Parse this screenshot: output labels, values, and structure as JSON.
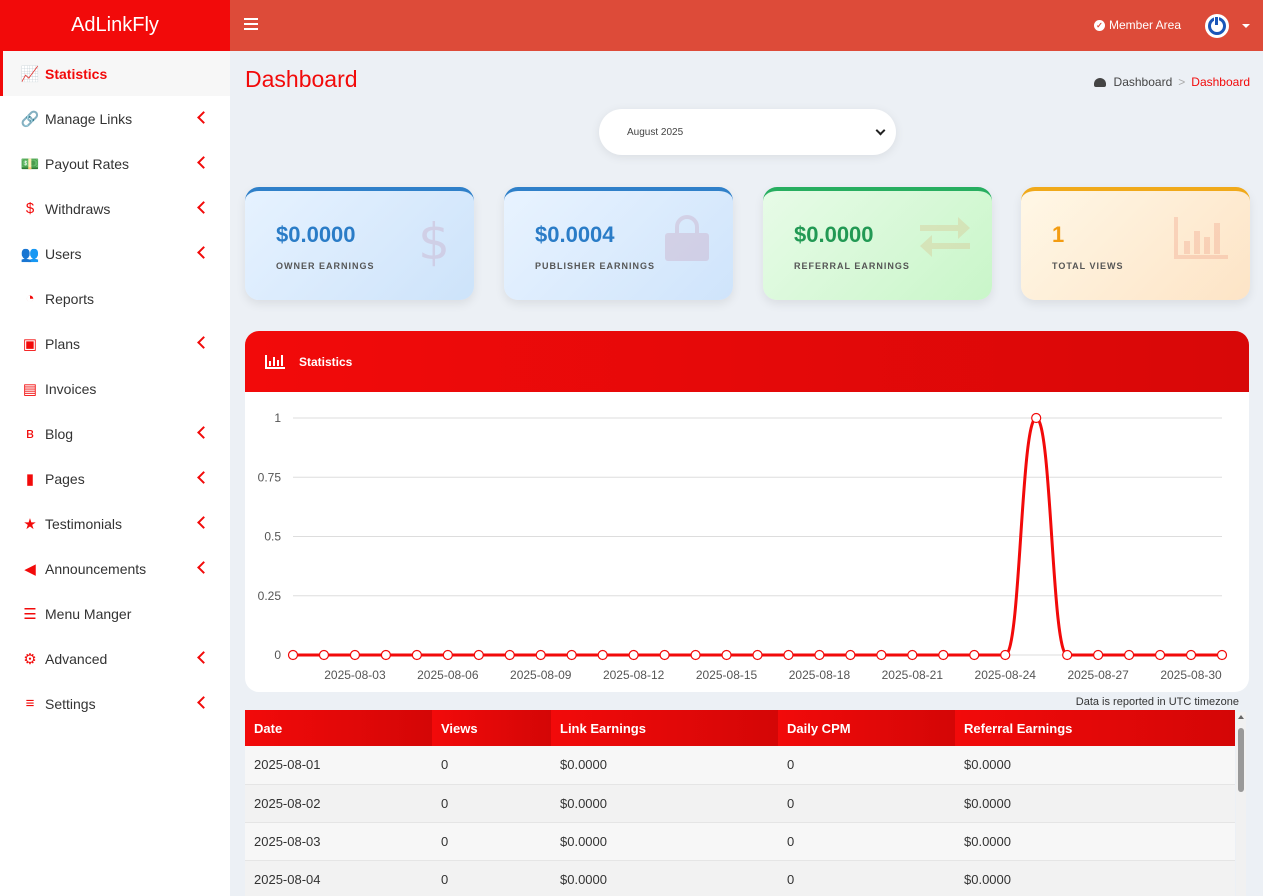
{
  "app": {
    "logo": "AdLinkFly"
  },
  "header": {
    "member_area": "Member Area"
  },
  "sidebar": {
    "items": [
      {
        "label": "Statistics",
        "icon": "line-chart-icon",
        "active": true,
        "expandable": false
      },
      {
        "label": "Manage Links",
        "icon": "link-icon",
        "active": false,
        "expandable": true
      },
      {
        "label": "Payout Rates",
        "icon": "money-icon",
        "active": false,
        "expandable": true
      },
      {
        "label": "Withdraws",
        "icon": "dollar-icon",
        "active": false,
        "expandable": true
      },
      {
        "label": "Users",
        "icon": "users-icon",
        "active": false,
        "expandable": true
      },
      {
        "label": "Reports",
        "icon": "pie-chart-icon",
        "active": false,
        "expandable": false
      },
      {
        "label": "Plans",
        "icon": "cubes-icon",
        "active": false,
        "expandable": true
      },
      {
        "label": "Invoices",
        "icon": "invoice-icon",
        "active": false,
        "expandable": false
      },
      {
        "label": "Blog",
        "icon": "blog-icon",
        "active": false,
        "expandable": true
      },
      {
        "label": "Pages",
        "icon": "file-icon",
        "active": false,
        "expandable": true
      },
      {
        "label": "Testimonials",
        "icon": "star-icon",
        "active": false,
        "expandable": true
      },
      {
        "label": "Announcements",
        "icon": "megaphone-icon",
        "active": false,
        "expandable": true
      },
      {
        "label": "Menu Manger",
        "icon": "bars-icon",
        "active": false,
        "expandable": false
      },
      {
        "label": "Advanced",
        "icon": "gears-icon",
        "active": false,
        "expandable": true
      },
      {
        "label": "Settings",
        "icon": "sliders-icon",
        "active": false,
        "expandable": true
      }
    ]
  },
  "page": {
    "title": "Dashboard",
    "breadcrumb": {
      "home": "Dashboard",
      "current": "Dashboard"
    },
    "month_select": "August 2025"
  },
  "cards": [
    {
      "value": "$0.0000",
      "label": "OWNER EARNINGS",
      "icon": "dollar-icon"
    },
    {
      "value": "$0.0004",
      "label": "PUBLISHER EARNINGS",
      "icon": "shopping-bag-icon"
    },
    {
      "value": "$0.0000",
      "label": "REFERRAL EARNINGS",
      "icon": "exchange-icon"
    },
    {
      "value": "1",
      "label": "TOTAL VIEWS",
      "icon": "bar-chart-icon"
    }
  ],
  "chart_panel": {
    "title": "Statistics",
    "note": "Data is reported in UTC timezone"
  },
  "chart_data": {
    "type": "line",
    "x": [
      "2025-08-01",
      "2025-08-02",
      "2025-08-03",
      "2025-08-04",
      "2025-08-05",
      "2025-08-06",
      "2025-08-07",
      "2025-08-08",
      "2025-08-09",
      "2025-08-10",
      "2025-08-11",
      "2025-08-12",
      "2025-08-13",
      "2025-08-14",
      "2025-08-15",
      "2025-08-16",
      "2025-08-17",
      "2025-08-18",
      "2025-08-19",
      "2025-08-20",
      "2025-08-21",
      "2025-08-22",
      "2025-08-23",
      "2025-08-24",
      "2025-08-25",
      "2025-08-26",
      "2025-08-27",
      "2025-08-28",
      "2025-08-29",
      "2025-08-30",
      "2025-08-31"
    ],
    "series": [
      {
        "values": [
          0,
          0,
          0,
          0,
          0,
          0,
          0,
          0,
          0,
          0,
          0,
          0,
          0,
          0,
          0,
          0,
          0,
          0,
          0,
          0,
          0,
          0,
          0,
          0,
          1,
          0,
          0,
          0,
          0,
          0,
          0
        ]
      }
    ],
    "x_tick_labels": [
      "2025-08-03",
      "2025-08-06",
      "2025-08-09",
      "2025-08-12",
      "2025-08-15",
      "2025-08-18",
      "2025-08-21",
      "2025-08-24",
      "2025-08-27",
      "2025-08-30"
    ],
    "y_tick_labels": [
      "0",
      "0.25",
      "0.5",
      "0.75",
      "1"
    ],
    "ylim": [
      0,
      1
    ],
    "grid": true,
    "color": "#f20a0a"
  },
  "table": {
    "columns": [
      "Date",
      "Views",
      "Link Earnings",
      "Daily CPM",
      "Referral Earnings"
    ],
    "rows": [
      [
        "2025-08-01",
        "0",
        "$0.0000",
        "0",
        "$0.0000"
      ],
      [
        "2025-08-02",
        "0",
        "$0.0000",
        "0",
        "$0.0000"
      ],
      [
        "2025-08-03",
        "0",
        "$0.0000",
        "0",
        "$0.0000"
      ],
      [
        "2025-08-04",
        "0",
        "$0.0000",
        "0",
        "$0.0000"
      ]
    ]
  },
  "colors": {
    "accent": "#f20a0a",
    "header": "#dd4b39"
  }
}
